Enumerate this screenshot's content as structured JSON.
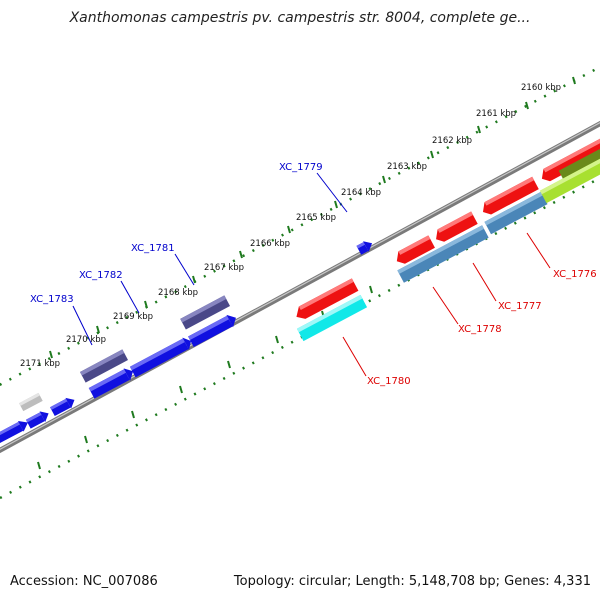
{
  "title": "Xanthomonas campestris pv. campestris str. 8004, complete ge...",
  "footer": {
    "accession": "Accession: NC_007086",
    "topology": "Topology: circular; Length: 5,148,708 bp; Genes: 4,331"
  },
  "colors": {
    "backbone": "#8a8a8a",
    "tick": "#1f7a1f",
    "label_forward": "#0000cc",
    "label_reverse": "#dd0000",
    "blue": "#1010e0",
    "dark_purple": "#4a4888",
    "red": "#ee1111",
    "cyan": "#11e8e8",
    "steel_blue": "#4a86b8",
    "lime": "#a8e030",
    "gray": "#bdbdbd"
  },
  "ticks": [
    {
      "label": "2160 kbp"
    },
    {
      "label": "2161 kbp"
    },
    {
      "label": "2162 kbp"
    },
    {
      "label": "2163 kbp"
    },
    {
      "label": "2164 kbp"
    },
    {
      "label": "2165 kbp"
    },
    {
      "label": "2166 kbp"
    },
    {
      "label": "2167 kbp"
    },
    {
      "label": "2168 kbp"
    },
    {
      "label": "2169 kbp"
    },
    {
      "label": "2170 kbp"
    },
    {
      "label": "2171 kbp"
    }
  ],
  "gene_labels": [
    {
      "text": "XC_1779",
      "strand": "forward"
    },
    {
      "text": "XC_1781",
      "strand": "forward"
    },
    {
      "text": "XC_1782",
      "strand": "forward"
    },
    {
      "text": "XC_1783",
      "strand": "forward"
    },
    {
      "text": "XC_1776",
      "strand": "reverse"
    },
    {
      "text": "XC_1777",
      "strand": "reverse"
    },
    {
      "text": "XC_1778",
      "strand": "reverse"
    },
    {
      "text": "XC_1780",
      "strand": "reverse"
    }
  ]
}
